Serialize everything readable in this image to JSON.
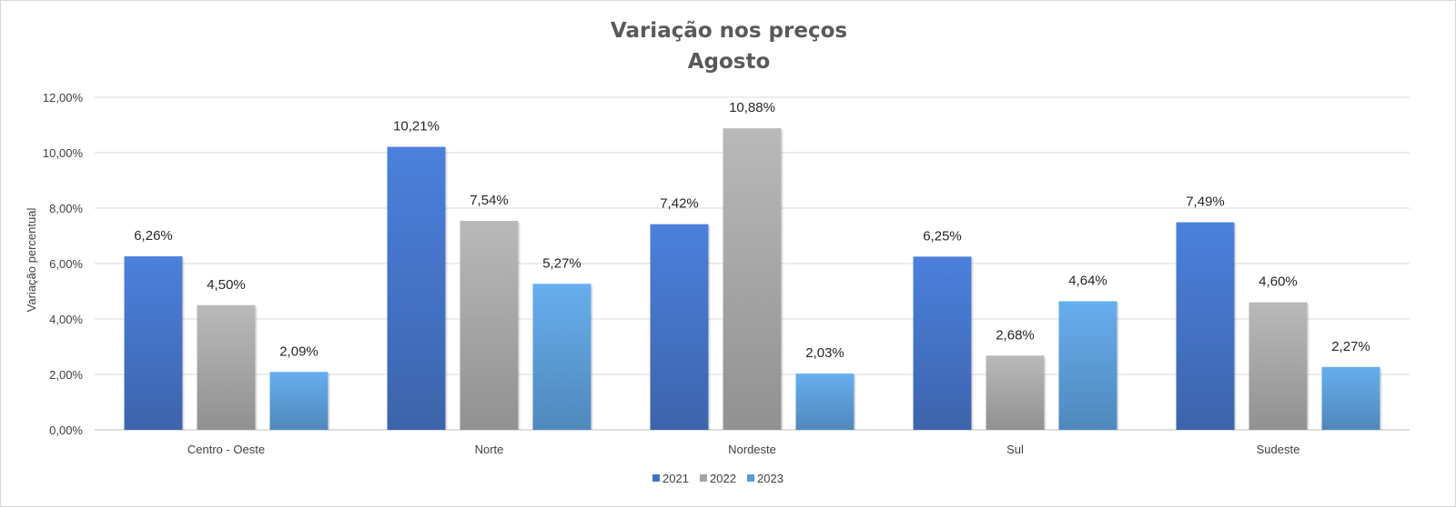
{
  "chart_data": {
    "type": "bar",
    "title": "Variação nos preços",
    "subtitle": "Agosto",
    "xlabel": "",
    "ylabel": "Variação percentual",
    "categories": [
      "Centro - Oeste",
      "Norte",
      "Nordeste",
      "Sul",
      "Sudeste"
    ],
    "series": [
      {
        "name": "2021",
        "values": [
          6.26,
          10.21,
          7.42,
          6.25,
          7.49
        ],
        "labels": [
          "6,26%",
          "10,21%",
          "7,42%",
          "6,25%",
          "7,49%"
        ],
        "color": "#4472c4"
      },
      {
        "name": "2022",
        "values": [
          4.5,
          7.54,
          10.88,
          2.68,
          4.6
        ],
        "labels": [
          "4,50%",
          "7,54%",
          "10,88%",
          "2,68%",
          "4,60%"
        ],
        "color": "#a5a5a5"
      },
      {
        "name": "2023",
        "values": [
          2.09,
          5.27,
          2.03,
          4.64,
          2.27
        ],
        "labels": [
          "2,09%",
          "5,27%",
          "2,03%",
          "4,64%",
          "2,27%"
        ],
        "color": "#5b9bd5"
      }
    ],
    "ylim": [
      0,
      12
    ],
    "yticks": [
      0,
      2,
      4,
      6,
      8,
      10,
      12
    ],
    "ytick_labels": [
      "0,00%",
      "2,00%",
      "4,00%",
      "6,00%",
      "8,00%",
      "10,00%",
      "12,00%"
    ],
    "grid": true,
    "legend_position": "bottom"
  }
}
